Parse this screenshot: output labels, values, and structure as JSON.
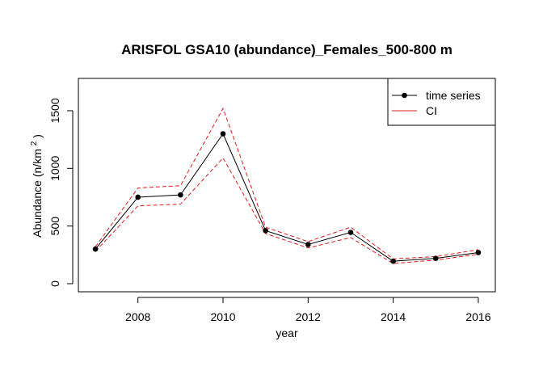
{
  "chart_data": {
    "type": "line",
    "title": "ARISFOL GSA10 (abundance)_Females_500-800 m",
    "xlabel": "year",
    "ylabel": {
      "prefix": "Abundance",
      "unit_base": "(n/km",
      "unit_sup": "2",
      "unit_close": ")"
    },
    "x_ticks": [
      "2008",
      "2010",
      "2012",
      "2014",
      "2016"
    ],
    "y_ticks": [
      "0",
      "500",
      "1000",
      "1500"
    ],
    "xlim": [
      2006.6,
      2016.4
    ],
    "ylim": [
      -70,
      1780
    ],
    "x": [
      2007,
      2008,
      2009,
      2010,
      2011,
      2012,
      2013,
      2014,
      2015,
      2016
    ],
    "series": [
      {
        "name": "time series",
        "color": "#000000",
        "style": "solid-with-points",
        "values": [
          300,
          750,
          770,
          1300,
          460,
          340,
          445,
          195,
          220,
          270
        ]
      },
      {
        "name": "CI",
        "color": "#e31a1c",
        "style": "dashed",
        "upper": [
          320,
          830,
          850,
          1520,
          490,
          365,
          490,
          215,
          235,
          295
        ],
        "lower": [
          280,
          675,
          690,
          1090,
          435,
          310,
          400,
          175,
          205,
          255
        ]
      }
    ],
    "legend": {
      "position": "top-right",
      "entries": [
        "time series",
        "CI"
      ]
    },
    "grid": false
  }
}
